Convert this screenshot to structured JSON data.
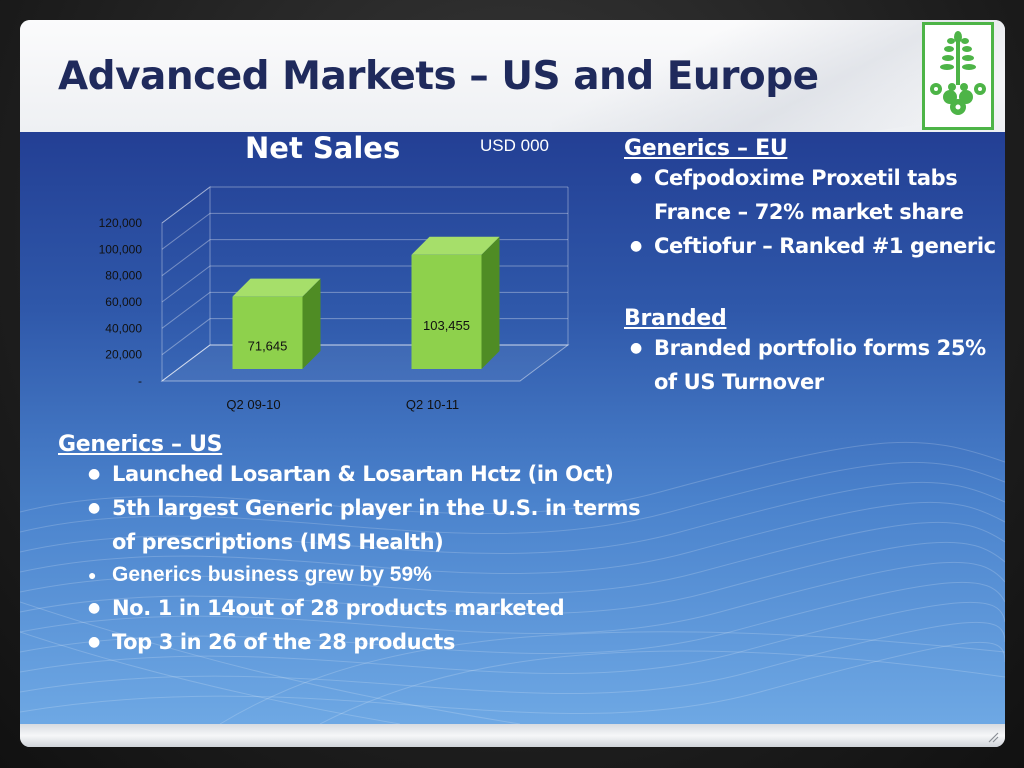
{
  "slide": {
    "title": "Advanced Markets – US and Europe"
  },
  "chart_data": {
    "type": "bar",
    "title": "Net Sales",
    "units": "USD 000",
    "categories": [
      "Q2 09-10",
      "Q2 10-11"
    ],
    "values": [
      71645,
      103455
    ],
    "value_labels": [
      "71,645",
      "103,455"
    ],
    "y_ticks": [
      "-",
      "20,000",
      "40,000",
      "60,000",
      "80,000",
      "100,000",
      "120,000"
    ],
    "ylim": [
      0,
      120000
    ],
    "grid": true,
    "style": "3d-column",
    "bar_color": "#8ed14c"
  },
  "generics_eu": {
    "heading": "Generics – EU",
    "items": [
      "Cefpodoxime Proxetil tabs France – 72% market share",
      "Ceftiofur – Ranked #1 generic"
    ],
    "item_lines": [
      [
        "Cefpodoxime Proxetil tabs",
        "France – 72% market share"
      ],
      [
        "Ceftiofur – Ranked #1 generic"
      ]
    ]
  },
  "branded": {
    "heading": "Branded",
    "item_lines": [
      [
        "Branded portfolio forms 25%",
        "of US Turnover"
      ]
    ]
  },
  "generics_us": {
    "heading": "Generics – US",
    "item_lines": [
      [
        "Launched Losartan & Losartan Hctz (in Oct)"
      ],
      [
        "5th largest Generic player in the U.S. in terms",
        "of prescriptions (IMS Health)"
      ],
      [
        "Generics business grew by 59%"
      ],
      [
        "No. 1 in 14out of 28 products marketed"
      ],
      [
        "Top 3 in 26 of the 28 products"
      ]
    ]
  },
  "bullet_glyph": "●",
  "colors": {
    "title": "#1f2a5c",
    "content_top": "#233f94",
    "content_bottom": "#6ea8e4",
    "logo_green": "#4db447"
  }
}
